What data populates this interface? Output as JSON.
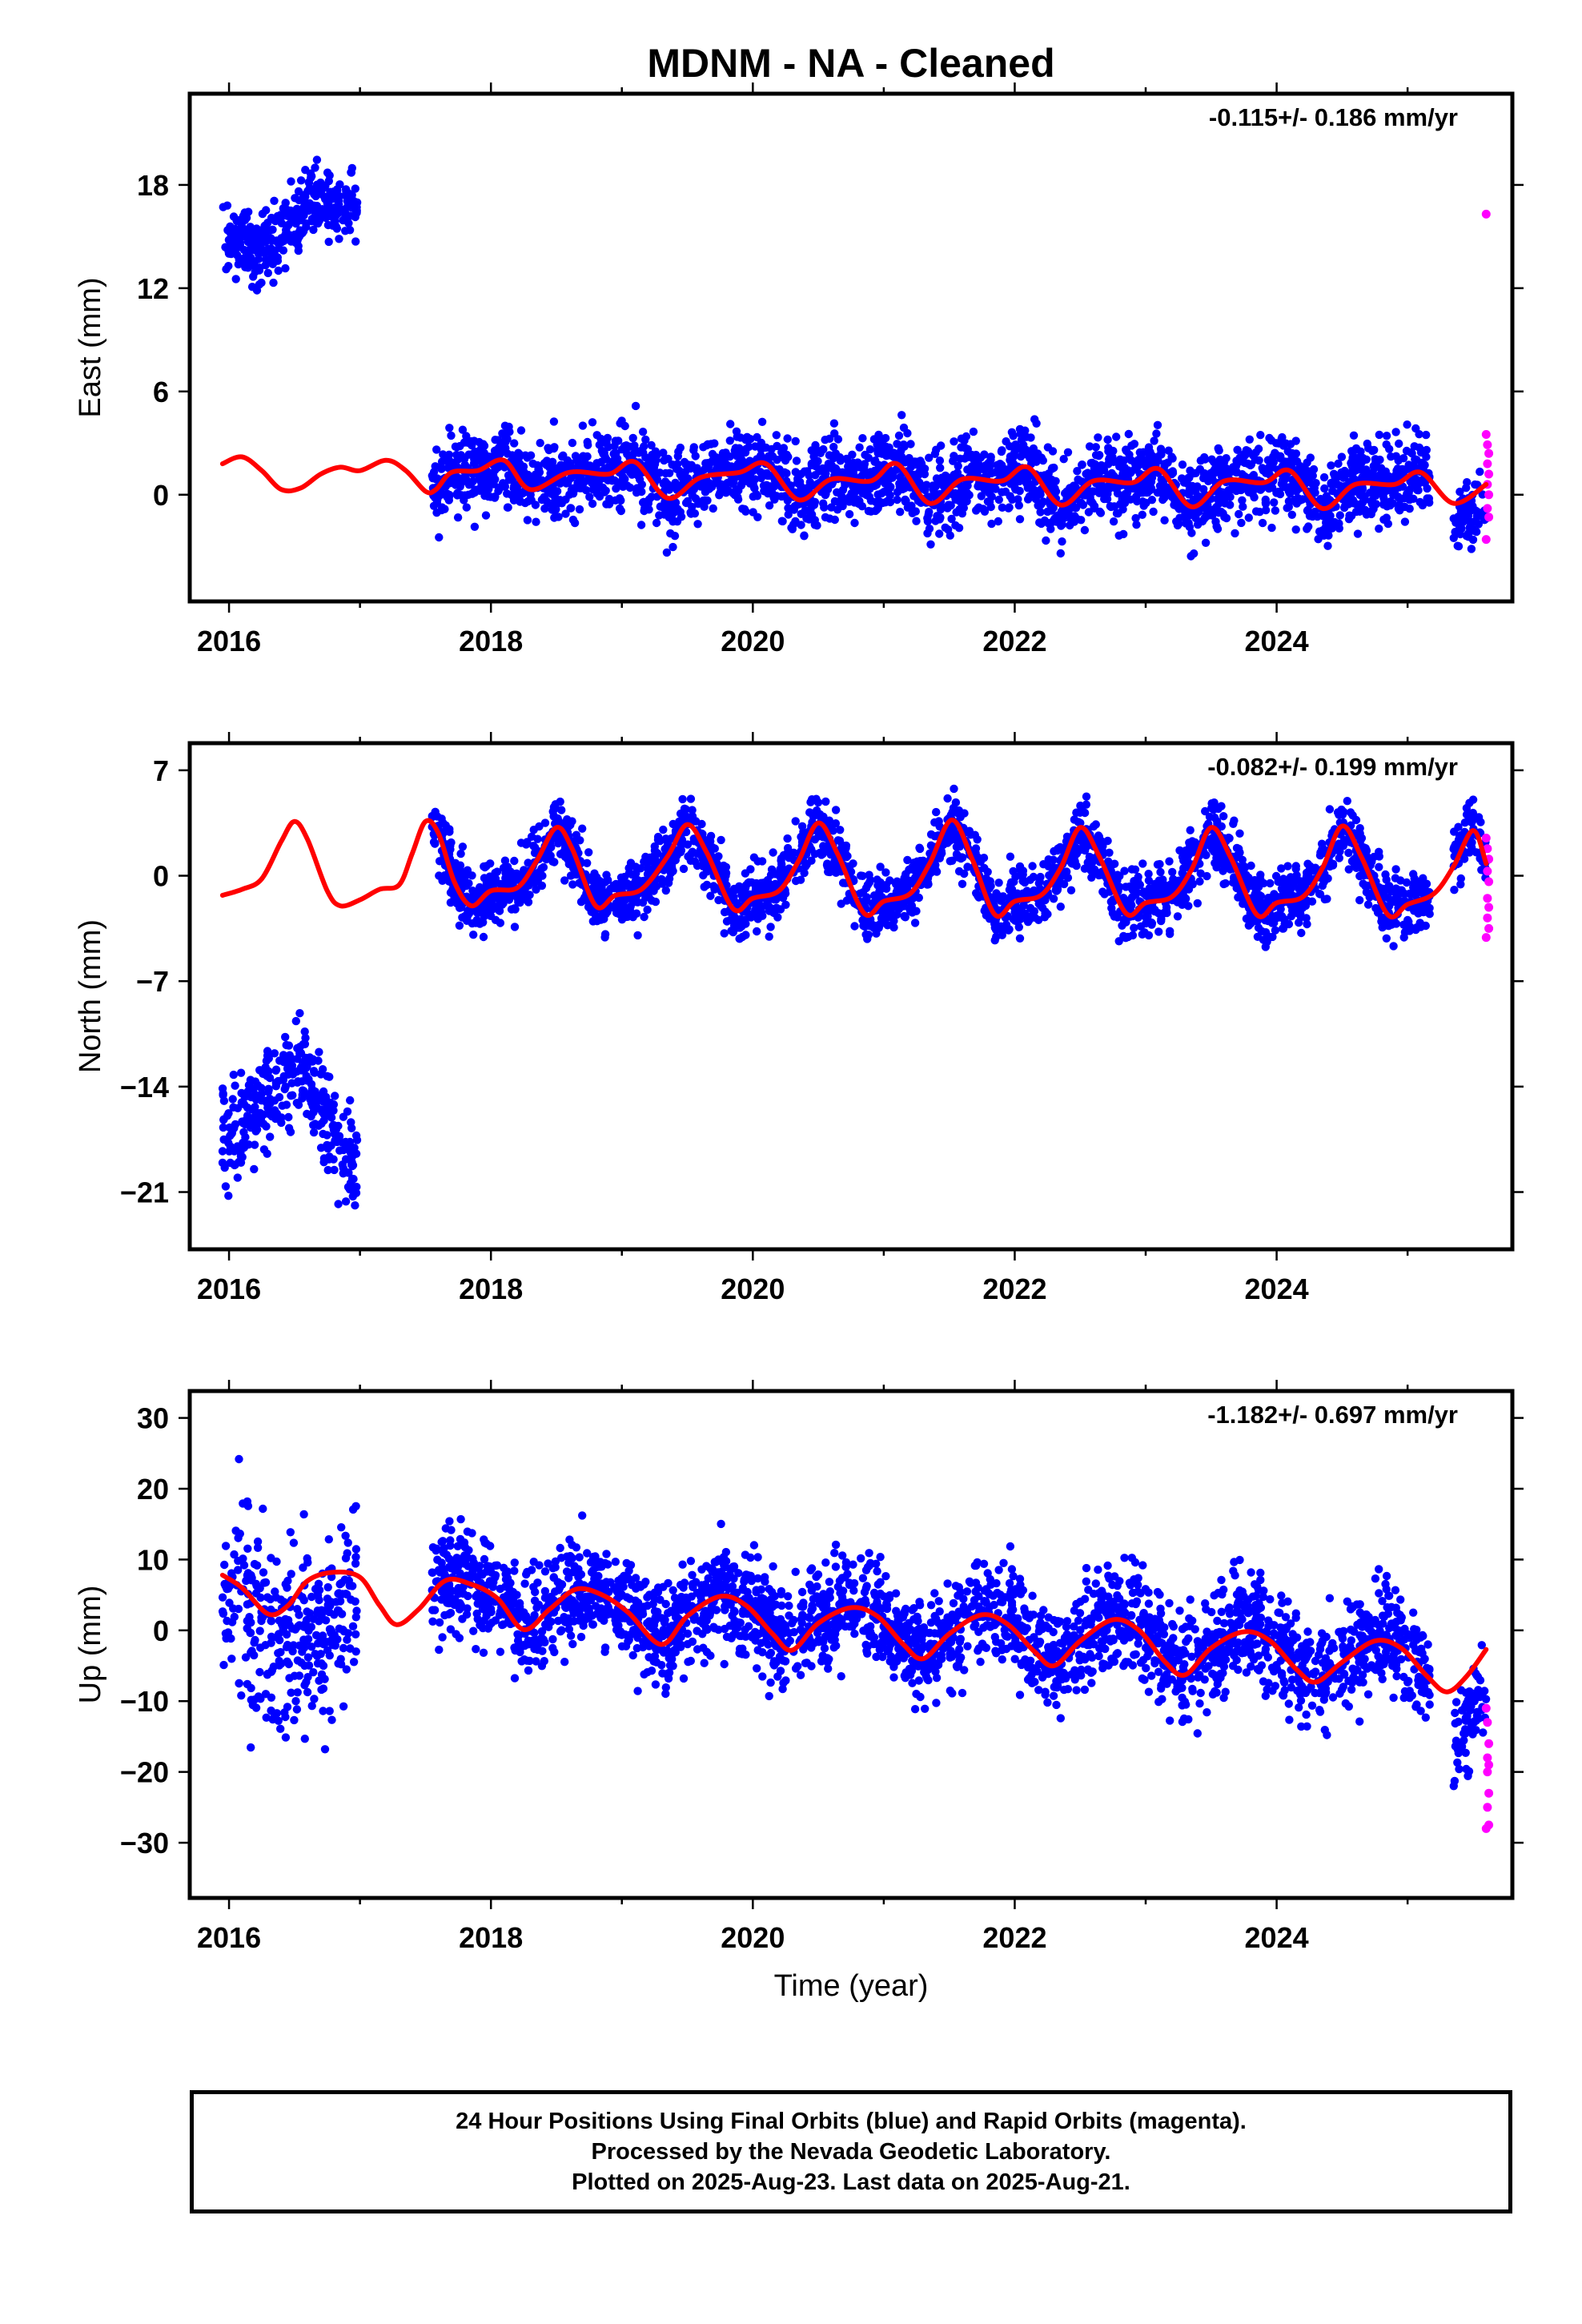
{
  "chart_data": {
    "type": "scatter",
    "title": "MDNM  - NA - Cleaned",
    "colors": {
      "final_orbits": "#0000ff",
      "rapid_orbits": "#ff00ff",
      "model_fit": "#ff0000"
    },
    "panels": [
      {
        "id": "east",
        "ylabel": "East (mm)",
        "rate": "-0.115+/- 0.186 mm/yr",
        "xlim": [
          2015.7,
          2025.8
        ],
        "ylim": [
          -6.2,
          23.3
        ],
        "yticks": [
          18,
          12,
          6,
          0
        ],
        "xticks": [
          "2016",
          "2018",
          "2020",
          "2022",
          "2024"
        ],
        "final_segments": [
          {
            "x0": 2015.95,
            "x1": 2016.98,
            "points": 330,
            "means": [
              15.0,
              14.6,
              14.4,
              14.8,
              16.6,
              17.3,
              16.8,
              16.6
            ],
            "spread": 1.1,
            "maxAbs": 2.6
          },
          {
            "x0": 2017.55,
            "x1": 2025.17,
            "points": 2600,
            "season": "fit",
            "offset": 0.0,
            "spread": 1.15,
            "maxAbs": 3.4
          },
          {
            "x0": 2025.35,
            "x1": 2025.6,
            "points": 70,
            "season": "fit",
            "offset": -1.3,
            "spread": 1.0,
            "maxAbs": 2.6
          }
        ],
        "rapid_points": [
          [
            2025.6,
            16.3
          ],
          [
            2025.6,
            3.5
          ],
          [
            2025.61,
            2.9
          ],
          [
            2025.62,
            2.4
          ],
          [
            2025.61,
            1.8
          ],
          [
            2025.62,
            1.2
          ],
          [
            2025.61,
            0.6
          ],
          [
            2025.62,
            0.0
          ],
          [
            2025.61,
            -0.8
          ],
          [
            2025.62,
            -1.3
          ],
          [
            2025.6,
            -2.6
          ]
        ],
        "model": {
          "type": "seasonal",
          "points": [
            [
              2015.95,
              1.8
            ],
            [
              2016.1,
              2.2
            ],
            [
              2016.25,
              1.4
            ],
            [
              2016.4,
              0.3
            ],
            [
              2016.55,
              0.4
            ],
            [
              2016.7,
              1.2
            ],
            [
              2016.85,
              1.6
            ],
            [
              2017.0,
              1.4
            ],
            [
              2017.2,
              2.0
            ],
            [
              2017.35,
              1.4
            ],
            [
              2017.5,
              0.2
            ],
            [
              2017.58,
              0.3
            ],
            [
              2017.7,
              1.3
            ],
            [
              2017.9,
              1.4
            ],
            [
              2018.1,
              2.0
            ],
            [
              2018.3,
              0.3
            ],
            [
              2018.6,
              1.3
            ],
            [
              2018.9,
              1.2
            ],
            [
              2019.1,
              1.9
            ],
            [
              2019.35,
              -0.2
            ],
            [
              2019.6,
              1.0
            ],
            [
              2019.9,
              1.3
            ],
            [
              2020.1,
              1.8
            ],
            [
              2020.35,
              -0.3
            ],
            [
              2020.6,
              0.9
            ],
            [
              2020.9,
              0.8
            ],
            [
              2021.1,
              1.8
            ],
            [
              2021.35,
              -0.5
            ],
            [
              2021.6,
              0.9
            ],
            [
              2021.9,
              0.8
            ],
            [
              2022.1,
              1.6
            ],
            [
              2022.35,
              -0.6
            ],
            [
              2022.6,
              0.8
            ],
            [
              2022.9,
              0.7
            ],
            [
              2023.1,
              1.5
            ],
            [
              2023.35,
              -0.7
            ],
            [
              2023.6,
              0.8
            ],
            [
              2023.9,
              0.7
            ],
            [
              2024.1,
              1.4
            ],
            [
              2024.35,
              -0.8
            ],
            [
              2024.6,
              0.6
            ],
            [
              2024.9,
              0.6
            ],
            [
              2025.1,
              1.3
            ],
            [
              2025.35,
              -0.5
            ],
            [
              2025.6,
              0.6
            ]
          ]
        }
      },
      {
        "id": "north",
        "ylabel": "North (mm)",
        "rate": "-0.082+/- 0.199 mm/yr",
        "xlim": [
          2015.7,
          2025.8
        ],
        "ylim": [
          -24.8,
          8.8
        ],
        "yticks": [
          7,
          0,
          -7,
          -14,
          -21
        ],
        "xticks": [
          "2016",
          "2018",
          "2020",
          "2022",
          "2024"
        ],
        "final_segments": [
          {
            "x0": 2015.95,
            "x1": 2016.98,
            "points": 330,
            "means": [
              -17.0,
              -16.6,
              -15.5,
              -14.2,
              -13.0,
              -12.8,
              -15.5,
              -18.0,
              -19.5
            ],
            "spread": 1.7,
            "maxAbs": 4.5
          },
          {
            "x0": 2017.55,
            "x1": 2025.17,
            "points": 2600,
            "season": "fit",
            "offset": 0.0,
            "spread": 1.05,
            "maxAbs": 3.2
          },
          {
            "x0": 2025.35,
            "x1": 2025.6,
            "points": 70,
            "season": "fit",
            "offset": 0.2,
            "spread": 1.0,
            "maxAbs": 2.5
          }
        ],
        "rapid_points": [
          [
            2025.6,
            2.5
          ],
          [
            2025.61,
            1.8
          ],
          [
            2025.62,
            1.1
          ],
          [
            2025.61,
            0.3
          ],
          [
            2025.62,
            -0.4
          ],
          [
            2025.61,
            -1.5
          ],
          [
            2025.62,
            -2.1
          ],
          [
            2025.61,
            -2.8
          ],
          [
            2025.62,
            -3.5
          ],
          [
            2025.6,
            -4.1
          ]
        ],
        "model": {
          "type": "seasonal",
          "points": [
            [
              2015.95,
              -1.3
            ],
            [
              2016.1,
              -0.9
            ],
            [
              2016.25,
              -0.2
            ],
            [
              2016.4,
              2.3
            ],
            [
              2016.5,
              3.6
            ],
            [
              2016.6,
              2.4
            ],
            [
              2016.75,
              -1.0
            ],
            [
              2016.85,
              -2.0
            ],
            [
              2017.0,
              -1.6
            ],
            [
              2017.15,
              -0.9
            ],
            [
              2017.3,
              -0.6
            ],
            [
              2017.4,
              1.5
            ],
            [
              2017.5,
              3.6
            ],
            [
              2017.6,
              2.8
            ],
            [
              2017.72,
              -0.4
            ],
            [
              2017.85,
              -2.0
            ],
            [
              2018.0,
              -1.0
            ],
            [
              2018.2,
              -0.8
            ],
            [
              2018.35,
              1.0
            ],
            [
              2018.5,
              3.2
            ],
            [
              2018.62,
              1.8
            ],
            [
              2018.8,
              -2.0
            ],
            [
              2018.95,
              -1.3
            ],
            [
              2019.15,
              -0.9
            ],
            [
              2019.35,
              1.3
            ],
            [
              2019.5,
              3.4
            ],
            [
              2019.65,
              1.5
            ],
            [
              2019.85,
              -2.2
            ],
            [
              2020.0,
              -1.5
            ],
            [
              2020.2,
              -1.0
            ],
            [
              2020.35,
              1.0
            ],
            [
              2020.5,
              3.5
            ],
            [
              2020.65,
              1.4
            ],
            [
              2020.85,
              -2.5
            ],
            [
              2021.0,
              -1.7
            ],
            [
              2021.2,
              -1.2
            ],
            [
              2021.35,
              0.8
            ],
            [
              2021.52,
              3.7
            ],
            [
              2021.68,
              1.0
            ],
            [
              2021.85,
              -2.6
            ],
            [
              2022.0,
              -1.7
            ],
            [
              2022.2,
              -1.3
            ],
            [
              2022.35,
              0.5
            ],
            [
              2022.5,
              3.2
            ],
            [
              2022.65,
              1.2
            ],
            [
              2022.85,
              -2.5
            ],
            [
              2023.0,
              -1.8
            ],
            [
              2023.2,
              -1.4
            ],
            [
              2023.35,
              0.4
            ],
            [
              2023.5,
              3.2
            ],
            [
              2023.65,
              1.2
            ],
            [
              2023.85,
              -2.6
            ],
            [
              2024.0,
              -1.8
            ],
            [
              2024.2,
              -1.4
            ],
            [
              2024.35,
              0.5
            ],
            [
              2024.5,
              3.3
            ],
            [
              2024.65,
              1.2
            ],
            [
              2024.85,
              -2.6
            ],
            [
              2025.0,
              -1.9
            ],
            [
              2025.2,
              -1.2
            ],
            [
              2025.35,
              0.6
            ],
            [
              2025.5,
              3.0
            ],
            [
              2025.6,
              0.8
            ]
          ]
        }
      },
      {
        "id": "up",
        "ylabel": "Up (mm)",
        "rate": "-1.182+/- 0.697 mm/yr",
        "xlim": [
          2015.7,
          2025.8
        ],
        "ylim": [
          -37.8,
          33.8
        ],
        "yticks": [
          30,
          20,
          10,
          0,
          -10,
          -20,
          -30
        ],
        "xticks": [
          "2016",
          "2018",
          "2020",
          "2022",
          "2024"
        ],
        "xlabel": "Time (year)",
        "final_segments": [
          {
            "x0": 2015.95,
            "x1": 2016.98,
            "points": 330,
            "means": [
              4.0,
              2.5,
              1.0,
              0.0,
              -2.0,
              -1.5,
              2.0,
              5.0
            ],
            "spread": 6.5,
            "maxAbs": 22
          },
          {
            "x0": 2017.55,
            "x1": 2025.17,
            "points": 2600,
            "season": "fit",
            "offset": 0.5,
            "spread": 3.6,
            "maxAbs": 11
          },
          {
            "x0": 2025.35,
            "x1": 2025.6,
            "points": 70,
            "season": "fit",
            "offset": -6.5,
            "spread": 4.0,
            "maxAbs": 10
          }
        ],
        "rapid_points": [
          [
            2025.6,
            -11
          ],
          [
            2025.61,
            -13
          ],
          [
            2025.62,
            -16
          ],
          [
            2025.61,
            -18
          ],
          [
            2025.62,
            -19
          ],
          [
            2025.61,
            -20
          ],
          [
            2025.62,
            -23
          ],
          [
            2025.61,
            -25
          ],
          [
            2025.62,
            -27.5
          ],
          [
            2025.6,
            -28
          ]
        ],
        "model": {
          "type": "seasonal",
          "points": [
            [
              2015.95,
              7.8
            ],
            [
              2016.1,
              6.0
            ],
            [
              2016.3,
              2.3
            ],
            [
              2016.45,
              3.5
            ],
            [
              2016.6,
              7.0
            ],
            [
              2016.8,
              8.2
            ],
            [
              2017.0,
              7.5
            ],
            [
              2017.15,
              3.5
            ],
            [
              2017.28,
              0.8
            ],
            [
              2017.45,
              3.0
            ],
            [
              2017.65,
              7.0
            ],
            [
              2017.85,
              6.5
            ],
            [
              2018.05,
              4.5
            ],
            [
              2018.25,
              0.1
            ],
            [
              2018.45,
              3.0
            ],
            [
              2018.65,
              5.8
            ],
            [
              2018.85,
              5.0
            ],
            [
              2019.05,
              2.5
            ],
            [
              2019.3,
              -2.0
            ],
            [
              2019.5,
              2.0
            ],
            [
              2019.75,
              4.8
            ],
            [
              2019.95,
              3.5
            ],
            [
              2020.15,
              -0.5
            ],
            [
              2020.3,
              -2.8
            ],
            [
              2020.5,
              1.0
            ],
            [
              2020.75,
              3.2
            ],
            [
              2020.95,
              2.0
            ],
            [
              2021.15,
              -2.0
            ],
            [
              2021.3,
              -4.0
            ],
            [
              2021.5,
              -0.5
            ],
            [
              2021.75,
              2.2
            ],
            [
              2021.95,
              0.8
            ],
            [
              2022.15,
              -3.0
            ],
            [
              2022.3,
              -5.0
            ],
            [
              2022.5,
              -1.5
            ],
            [
              2022.75,
              1.5
            ],
            [
              2022.95,
              0.0
            ],
            [
              2023.15,
              -4.5
            ],
            [
              2023.3,
              -6.3
            ],
            [
              2023.5,
              -2.5
            ],
            [
              2023.75,
              -0.2
            ],
            [
              2023.95,
              -1.5
            ],
            [
              2024.15,
              -5.5
            ],
            [
              2024.3,
              -7.3
            ],
            [
              2024.5,
              -4.5
            ],
            [
              2024.75,
              -1.5
            ],
            [
              2024.95,
              -2.5
            ],
            [
              2025.15,
              -6.5
            ],
            [
              2025.3,
              -8.7
            ],
            [
              2025.45,
              -6.5
            ],
            [
              2025.6,
              -2.7
            ]
          ]
        }
      }
    ]
  },
  "footer": {
    "line1": "24 Hour Positions Using Final Orbits (blue) and Rapid Orbits (magenta).",
    "line2": "Processed by the Nevada Geodetic Laboratory.",
    "line3": "Plotted on 2025-Aug-23. Last data on 2025-Aug-21."
  }
}
